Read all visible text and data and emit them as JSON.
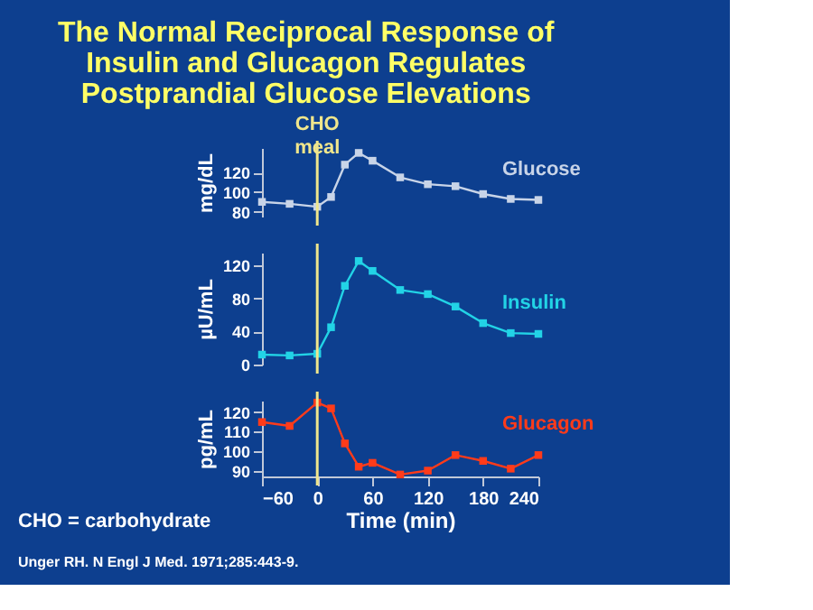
{
  "chart_data": [
    {
      "type": "line",
      "title": "The Normal Reciprocal Response of Insulin and Glucagon Regulates Postprandial Glucose Elevations",
      "ylabel": "mg/dL",
      "x": [
        -60,
        -30,
        0,
        15,
        30,
        45,
        60,
        90,
        120,
        150,
        180,
        210,
        240
      ],
      "xlim": [
        -60,
        240
      ],
      "ylim": [
        75,
        145
      ],
      "yticks": [
        80,
        100,
        120
      ],
      "tick_labels": "y",
      "marker": "square",
      "line_style": "solid",
      "series": [
        {
          "name": "Glucose",
          "color": "#c8d4e8",
          "values": [
            90,
            88,
            85,
            95,
            128,
            140,
            132,
            115,
            108,
            106,
            98,
            93,
            92
          ]
        }
      ],
      "ref_lines": [
        {
          "axis": "x",
          "value": 0,
          "label": "CHO meal",
          "color": "#f0e68c"
        }
      ]
    },
    {
      "type": "line",
      "ylabel": "µU/mL",
      "x": [
        -60,
        -30,
        0,
        15,
        30,
        45,
        60,
        90,
        120,
        150,
        180,
        210,
        240
      ],
      "xlim": [
        -60,
        240
      ],
      "ylim": [
        0,
        135
      ],
      "yticks": [
        0,
        40,
        80,
        120
      ],
      "tick_labels": "y",
      "marker": "square",
      "line_style": "solid",
      "series": [
        {
          "name": "Insulin",
          "color": "#22d3e6",
          "values": [
            12,
            11,
            13,
            45,
            95,
            125,
            113,
            90,
            85,
            70,
            50,
            38,
            37
          ]
        }
      ],
      "ref_lines": [
        {
          "axis": "x",
          "value": 0,
          "color": "#f0e68c"
        }
      ]
    },
    {
      "type": "line",
      "ylabel": "pg/mL",
      "xlabel": "Time (min)",
      "x": [
        -60,
        -30,
        0,
        15,
        30,
        45,
        60,
        90,
        120,
        150,
        180,
        210,
        240
      ],
      "xlim": [
        -60,
        240
      ],
      "ylim": [
        87,
        126
      ],
      "yticks": [
        90,
        100,
        110,
        120
      ],
      "xticks": [
        -60,
        0,
        60,
        120,
        180,
        240
      ],
      "marker": "square",
      "line_style": "solid",
      "series": [
        {
          "name": "Glucagon",
          "color": "#ff3b1a",
          "values": [
            115,
            113,
            125,
            122,
            104,
            92,
            94,
            88,
            90,
            98,
            95,
            91,
            98
          ]
        }
      ],
      "ref_lines": [
        {
          "axis": "x",
          "value": 0,
          "color": "#f0e68c"
        }
      ],
      "annotations": [
        "CHO = carbohydrate",
        "Unger RH. N Engl J Med. 1971;285:443-9."
      ]
    }
  ]
}
